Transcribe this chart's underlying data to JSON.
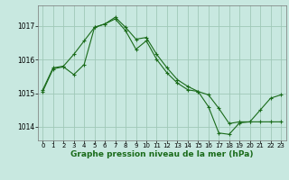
{
  "background_color": "#c8e8e0",
  "plot_bg_color": "#c8e8e0",
  "grid_color": "#a0c8b8",
  "line_color": "#1a6b1a",
  "marker_color": "#1a6b1a",
  "title": "Graphe pression niveau de la mer (hPa)",
  "title_fontsize": 6.5,
  "tick_fontsize": 5.0,
  "xlim": [
    -0.5,
    23.5
  ],
  "ylim": [
    1013.6,
    1017.6
  ],
  "yticks": [
    1014,
    1015,
    1016,
    1017
  ],
  "xticks": [
    0,
    1,
    2,
    3,
    4,
    5,
    6,
    7,
    8,
    9,
    10,
    11,
    12,
    13,
    14,
    15,
    16,
    17,
    18,
    19,
    20,
    21,
    22,
    23
  ],
  "line1_x": [
    0,
    1,
    2,
    3,
    4,
    5,
    6,
    7,
    8,
    9,
    10,
    11,
    12,
    13,
    14,
    15,
    16,
    17,
    18,
    19,
    20,
    21,
    22,
    23
  ],
  "line1_y": [
    1015.1,
    1015.75,
    1015.8,
    1016.15,
    1016.55,
    1016.95,
    1017.05,
    1017.25,
    1016.95,
    1016.6,
    1016.65,
    1016.15,
    1015.75,
    1015.4,
    1015.2,
    1015.05,
    1014.95,
    1014.55,
    1014.1,
    1014.15,
    1014.15,
    1014.15,
    1014.15,
    1014.15
  ],
  "line2_x": [
    0,
    1,
    2,
    3,
    4,
    5,
    6,
    7,
    8,
    9,
    10,
    11,
    12,
    13,
    14,
    15,
    16,
    17,
    18,
    19,
    20,
    21,
    22,
    23
  ],
  "line2_y": [
    1015.05,
    1015.72,
    1015.78,
    1015.55,
    1015.85,
    1016.95,
    1017.05,
    1017.2,
    1016.85,
    1016.3,
    1016.55,
    1016.0,
    1015.6,
    1015.3,
    1015.1,
    1015.05,
    1014.6,
    1013.82,
    1013.78,
    1014.12,
    1014.15,
    1014.5,
    1014.85,
    1014.95
  ]
}
